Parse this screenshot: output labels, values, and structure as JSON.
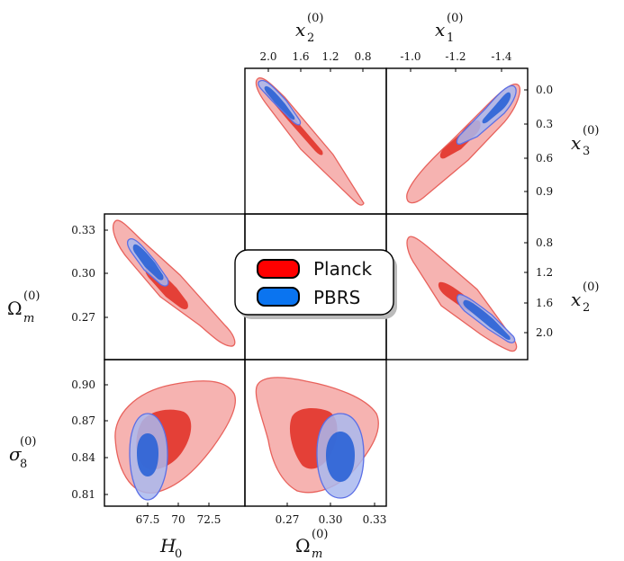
{
  "chart_data": {
    "type": "contour-triangle",
    "series": [
      {
        "name": "Planck",
        "color_outer": "#f4a6a3",
        "color_inner": "#e2332a",
        "edge": "#e8625c"
      },
      {
        "name": "PBRS",
        "color_outer": "#a9b8ee",
        "color_inner": "#2a63d6",
        "edge": "#5b6fe6"
      }
    ],
    "axes": {
      "H0": {
        "main": "H",
        "sub": "0",
        "sup": "",
        "ticks": [
          "67.5",
          "70",
          "72.5"
        ]
      },
      "Om": {
        "main": "Ω",
        "sub": "m",
        "sup": "(0)",
        "ticks": [
          "0.27",
          "0.30",
          "0.33"
        ]
      },
      "s8": {
        "main": "σ",
        "sub": "8",
        "sup": "(0)",
        "ticks": [
          "0.90",
          "0.87",
          "0.84",
          "0.81"
        ]
      },
      "x2": {
        "main": "x",
        "sub": "2",
        "sup": "(0)",
        "ticks_top": [
          "2.0",
          "1.6",
          "1.2",
          "0.8"
        ],
        "ticks_right": [
          "0.8",
          "1.2",
          "1.6",
          "2.0"
        ]
      },
      "x1": {
        "main": "x",
        "sub": "1",
        "sup": "(0)",
        "ticks": [
          "-1.0",
          "-1.2",
          "-1.4"
        ]
      },
      "x3": {
        "main": "x",
        "sub": "3",
        "sup": "(0)",
        "ticks": [
          "0.0",
          "0.3",
          "0.6",
          "0.9"
        ]
      },
      "Om_left": {
        "ticks": [
          "0.33",
          "0.30",
          "0.27"
        ]
      }
    },
    "legend": {
      "position": "center",
      "entries": [
        "Planck",
        "PBRS"
      ]
    }
  }
}
